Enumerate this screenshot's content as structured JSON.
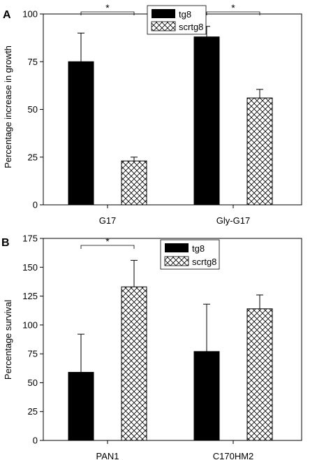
{
  "chart_data": [
    {
      "panel_label": "A",
      "type": "bar",
      "title": "",
      "xlabel": "",
      "ylabel": "Percentage increase in growth",
      "ylim": [
        0,
        100
      ],
      "yticks": [
        0,
        25,
        50,
        75,
        100
      ],
      "categories": [
        "G17",
        "Gly-G17"
      ],
      "series": [
        {
          "name": "tg8",
          "fill": "solid",
          "values": [
            75,
            88
          ],
          "error_upper": [
            90,
            93.5
          ]
        },
        {
          "name": "scrtg8",
          "fill": "crosshatch",
          "values": [
            23,
            56
          ],
          "error_upper": [
            25,
            60.5
          ]
        }
      ],
      "significance": [
        {
          "category": "G17",
          "label": "*"
        },
        {
          "category": "Gly-G17",
          "label": "*"
        }
      ],
      "legend": {
        "placement": "top-center",
        "entries": [
          "tg8",
          "scrtg8"
        ]
      },
      "grid": false
    },
    {
      "panel_label": "B",
      "type": "bar",
      "title": "",
      "xlabel": "",
      "ylabel": "Percentage survival",
      "ylim": [
        0,
        175
      ],
      "yticks": [
        0,
        25,
        50,
        75,
        100,
        125,
        150,
        175
      ],
      "categories": [
        "PAN1",
        "C170HM2"
      ],
      "series": [
        {
          "name": "tg8",
          "fill": "solid",
          "values": [
            59,
            77
          ],
          "error_upper": [
            92,
            118
          ]
        },
        {
          "name": "scrtg8",
          "fill": "crosshatch",
          "values": [
            133,
            114
          ],
          "error_upper": [
            156,
            126
          ]
        }
      ],
      "significance": [
        {
          "category": "PAN1",
          "label": "*"
        }
      ],
      "legend": {
        "placement": "top-center",
        "entries": [
          "tg8",
          "scrtg8"
        ]
      },
      "grid": false
    }
  ],
  "colors": {
    "solid_bar": "#000000",
    "hatch_line": "#000000",
    "background": "#ffffff"
  }
}
